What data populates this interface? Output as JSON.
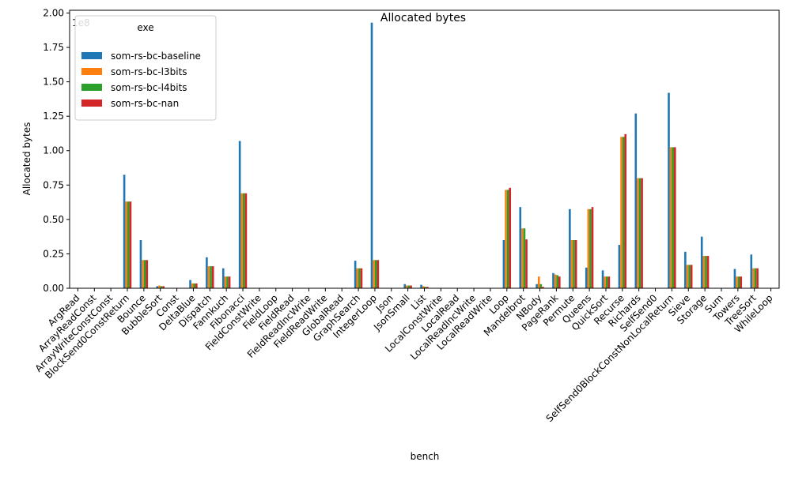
{
  "chart_data": {
    "type": "bar",
    "title": "Allocated bytes",
    "xlabel": "bench",
    "ylabel": "Allocated bytes",
    "y_scale_label": "1e8",
    "y_scale": 100000000,
    "ylim": [
      0,
      202000000
    ],
    "yticks": [
      0,
      25000000,
      50000000,
      75000000,
      100000000,
      125000000,
      150000000,
      175000000,
      200000000
    ],
    "ytick_labels": [
      "0.00",
      "0.25",
      "0.50",
      "0.75",
      "1.00",
      "1.25",
      "1.50",
      "1.75",
      "2.00"
    ],
    "grid": false,
    "legend": {
      "title": "exe",
      "placement": "top-left"
    },
    "categories": [
      "ArgRead",
      "ArrayReadConst",
      "ArrayWriteConstConst",
      "BlockSend0ConstReturn",
      "Bounce",
      "BubbleSort",
      "Const",
      "DeltaBlue",
      "Dispatch",
      "Fannkuch",
      "Fibonacci",
      "FieldConstWrite",
      "FieldLoop",
      "FieldRead",
      "FieldReadIncWrite",
      "FieldReadWrite",
      "GlobalRead",
      "GraphSearch",
      "IntegerLoop",
      "Json",
      "JsonSmall",
      "List",
      "LocalConstWrite",
      "LocalRead",
      "LocalReadIncWrite",
      "LocalReadWrite",
      "Loop",
      "Mandelbrot",
      "NBody",
      "PageRank",
      "Permute",
      "Queens",
      "QuickSort",
      "Recurse",
      "Richards",
      "SelfSend0",
      "SelfSend0BlockConstNonLocalReturn",
      "Sieve",
      "Storage",
      "Sum",
      "Towers",
      "TreeSort",
      "WhileLoop"
    ],
    "series": [
      {
        "name": "som-rs-bc-baseline",
        "color": "#1f77b4",
        "values": [
          0,
          0,
          0,
          82500000,
          35000000,
          1500000,
          0,
          6000000,
          22500000,
          14500000,
          107000000,
          0,
          0,
          0,
          0,
          0,
          0,
          20000000,
          193000000,
          0,
          3000000,
          2500000,
          0,
          0,
          0,
          0,
          35000000,
          59000000,
          3000000,
          11000000,
          57500000,
          15000000,
          13000000,
          31500000,
          127000000,
          0,
          142000000,
          26500000,
          37500000,
          0,
          14000000,
          24500000,
          0
        ]
      },
      {
        "name": "som-rs-bc-l3bits",
        "color": "#ff7f0e",
        "values": [
          0,
          0,
          0,
          63000000,
          20500000,
          2000000,
          0,
          3500000,
          16000000,
          8500000,
          69000000,
          0,
          0,
          0,
          0,
          0,
          0,
          14500000,
          20500000,
          0,
          2000000,
          1500000,
          0,
          0,
          0,
          0,
          71500000,
          43500000,
          8500000,
          10000000,
          35000000,
          57500000,
          8500000,
          110000000,
          80000000,
          0,
          102500000,
          17000000,
          23500000,
          0,
          8500000,
          14500000,
          0
        ]
      },
      {
        "name": "som-rs-bc-l4bits",
        "color": "#2ca02c",
        "values": [
          0,
          0,
          0,
          63000000,
          20500000,
          1500000,
          0,
          3500000,
          16000000,
          8500000,
          69000000,
          0,
          0,
          0,
          0,
          0,
          0,
          14500000,
          20500000,
          0,
          2000000,
          1000000,
          0,
          0,
          0,
          0,
          71500000,
          43500000,
          3000000,
          9500000,
          35000000,
          57500000,
          8500000,
          110000000,
          80000000,
          0,
          102500000,
          17000000,
          23500000,
          0,
          8500000,
          14500000,
          0
        ]
      },
      {
        "name": "som-rs-bc-nan",
        "color": "#d62728",
        "values": [
          0,
          0,
          0,
          63000000,
          20500000,
          1500000,
          0,
          3500000,
          16000000,
          8500000,
          69000000,
          0,
          0,
          0,
          0,
          0,
          0,
          14500000,
          20500000,
          0,
          2000000,
          1000000,
          0,
          0,
          0,
          0,
          73000000,
          35500000,
          1000000,
          8500000,
          35000000,
          59000000,
          8500000,
          112000000,
          80000000,
          0,
          102500000,
          17000000,
          23500000,
          0,
          8500000,
          14500000,
          0
        ]
      }
    ]
  }
}
